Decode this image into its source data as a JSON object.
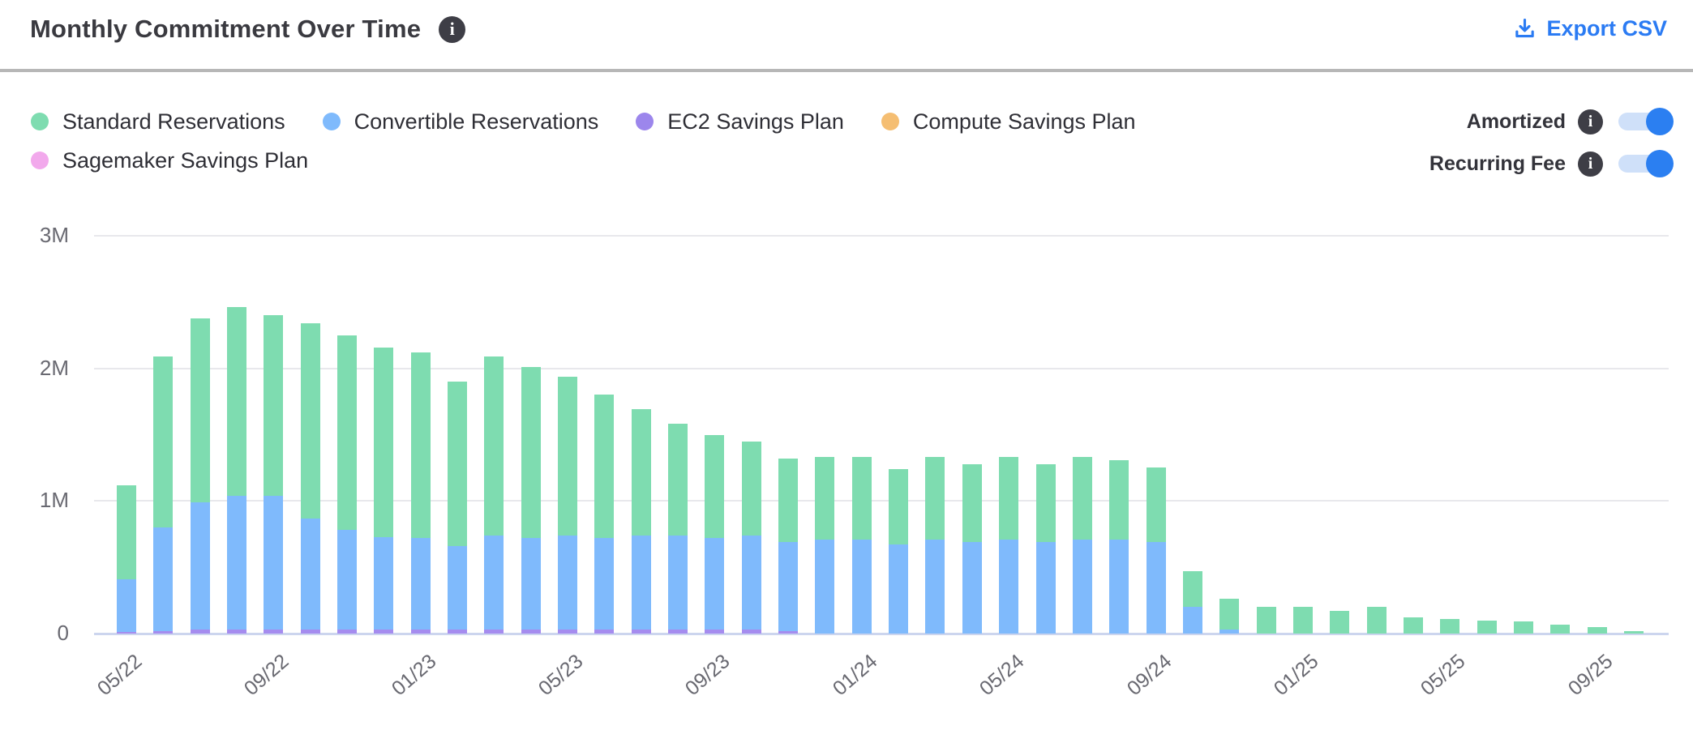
{
  "header": {
    "title": "Monthly Commitment Over Time",
    "title_info_icon": "i",
    "export_label": "Export CSV",
    "export_color": "#2b7bf3"
  },
  "legend": {
    "items": [
      {
        "label": "Standard Reservations",
        "color": "#7edcb0"
      },
      {
        "label": "Convertible Reservations",
        "color": "#7fbafc"
      },
      {
        "label": "EC2 Savings Plan",
        "color": "#9c86ec"
      },
      {
        "label": "Compute Savings Plan",
        "color": "#f5be72"
      },
      {
        "label": "Sagemaker Savings Plan",
        "color": "#f2a9ec"
      }
    ]
  },
  "controls": {
    "amortized": {
      "label": "Amortized",
      "state": "on",
      "info_icon": "i"
    },
    "recurring_fee": {
      "label": "Recurring Fee",
      "state": "on",
      "info_icon": "i"
    }
  },
  "chart_data": {
    "type": "bar",
    "subtype": "stacked",
    "title": "Monthly Commitment Over Time",
    "unit": "USD (millions)",
    "ylim": [
      0,
      3000000
    ],
    "y_ticks": [
      "0",
      "1M",
      "2M",
      "3M"
    ],
    "grid": "horizontal",
    "categories": [
      "05/22",
      "06/22",
      "07/22",
      "08/22",
      "09/22",
      "10/22",
      "11/22",
      "12/22",
      "01/23",
      "02/23",
      "03/23",
      "04/23",
      "05/23",
      "06/23",
      "07/23",
      "08/23",
      "09/23",
      "10/23",
      "11/23",
      "12/23",
      "01/24",
      "02/24",
      "03/24",
      "04/24",
      "05/24",
      "06/24",
      "07/24",
      "08/24",
      "09/24",
      "10/24",
      "11/24",
      "12/24",
      "01/25",
      "02/25",
      "03/25",
      "04/25",
      "05/25",
      "06/25",
      "07/25",
      "08/25",
      "09/25",
      "10/25"
    ],
    "x_tick_every": 4,
    "x_tick_labels": [
      "05/22",
      "09/22",
      "01/23",
      "05/23",
      "09/23",
      "01/24",
      "05/24",
      "09/24",
      "01/25",
      "05/25",
      "09/25"
    ],
    "stack_order_bottom_to_top": [
      "ec2",
      "convertible",
      "standard"
    ],
    "series": [
      {
        "key": "standard",
        "name": "Standard Reservations",
        "color": "#7edcb0",
        "values_millions": [
          0.71,
          1.29,
          1.39,
          1.42,
          1.36,
          1.47,
          1.47,
          1.43,
          1.4,
          1.24,
          1.35,
          1.29,
          1.2,
          1.08,
          0.95,
          0.84,
          0.78,
          0.71,
          0.63,
          0.62,
          0.62,
          0.57,
          0.62,
          0.59,
          0.62,
          0.59,
          0.62,
          0.6,
          0.56,
          0.27,
          0.23,
          0.2,
          0.2,
          0.17,
          0.2,
          0.12,
          0.11,
          0.1,
          0.09,
          0.07,
          0.05,
          0.02
        ]
      },
      {
        "key": "convertible",
        "name": "Convertible Reservations",
        "color": "#7fbafc",
        "values_millions": [
          0.4,
          0.78,
          0.96,
          1.01,
          1.01,
          0.84,
          0.75,
          0.7,
          0.69,
          0.63,
          0.71,
          0.69,
          0.71,
          0.69,
          0.71,
          0.71,
          0.69,
          0.71,
          0.67,
          0.71,
          0.71,
          0.67,
          0.71,
          0.69,
          0.71,
          0.69,
          0.71,
          0.71,
          0.69,
          0.2,
          0.03,
          0,
          0,
          0,
          0,
          0,
          0,
          0,
          0,
          0,
          0,
          0
        ]
      },
      {
        "key": "ec2",
        "name": "EC2 Savings Plan",
        "color": "#a58cef",
        "values_millions": [
          0.01,
          0.02,
          0.03,
          0.03,
          0.03,
          0.03,
          0.03,
          0.03,
          0.03,
          0.03,
          0.03,
          0.03,
          0.03,
          0.03,
          0.03,
          0.03,
          0.03,
          0.03,
          0.02,
          0,
          0,
          0,
          0,
          0,
          0,
          0,
          0,
          0,
          0,
          0,
          0,
          0,
          0,
          0,
          0,
          0,
          0,
          0,
          0,
          0,
          0,
          0
        ]
      },
      {
        "key": "compute",
        "name": "Compute Savings Plan",
        "color": "#f5be72",
        "values_millions": [
          0,
          0,
          0,
          0,
          0,
          0,
          0,
          0,
          0,
          0,
          0,
          0,
          0,
          0,
          0,
          0,
          0,
          0,
          0,
          0,
          0,
          0,
          0,
          0,
          0,
          0,
          0,
          0,
          0,
          0,
          0,
          0,
          0,
          0,
          0,
          0,
          0,
          0,
          0,
          0,
          0,
          0
        ]
      },
      {
        "key": "sagemaker",
        "name": "Sagemaker Savings Plan",
        "color": "#f2a9ec",
        "values_millions": [
          0,
          0,
          0,
          0,
          0,
          0,
          0,
          0,
          0,
          0,
          0,
          0,
          0,
          0,
          0,
          0,
          0,
          0,
          0,
          0,
          0,
          0,
          0,
          0,
          0,
          0,
          0,
          0,
          0,
          0,
          0,
          0,
          0,
          0,
          0,
          0,
          0,
          0,
          0,
          0,
          0,
          0
        ]
      }
    ]
  }
}
